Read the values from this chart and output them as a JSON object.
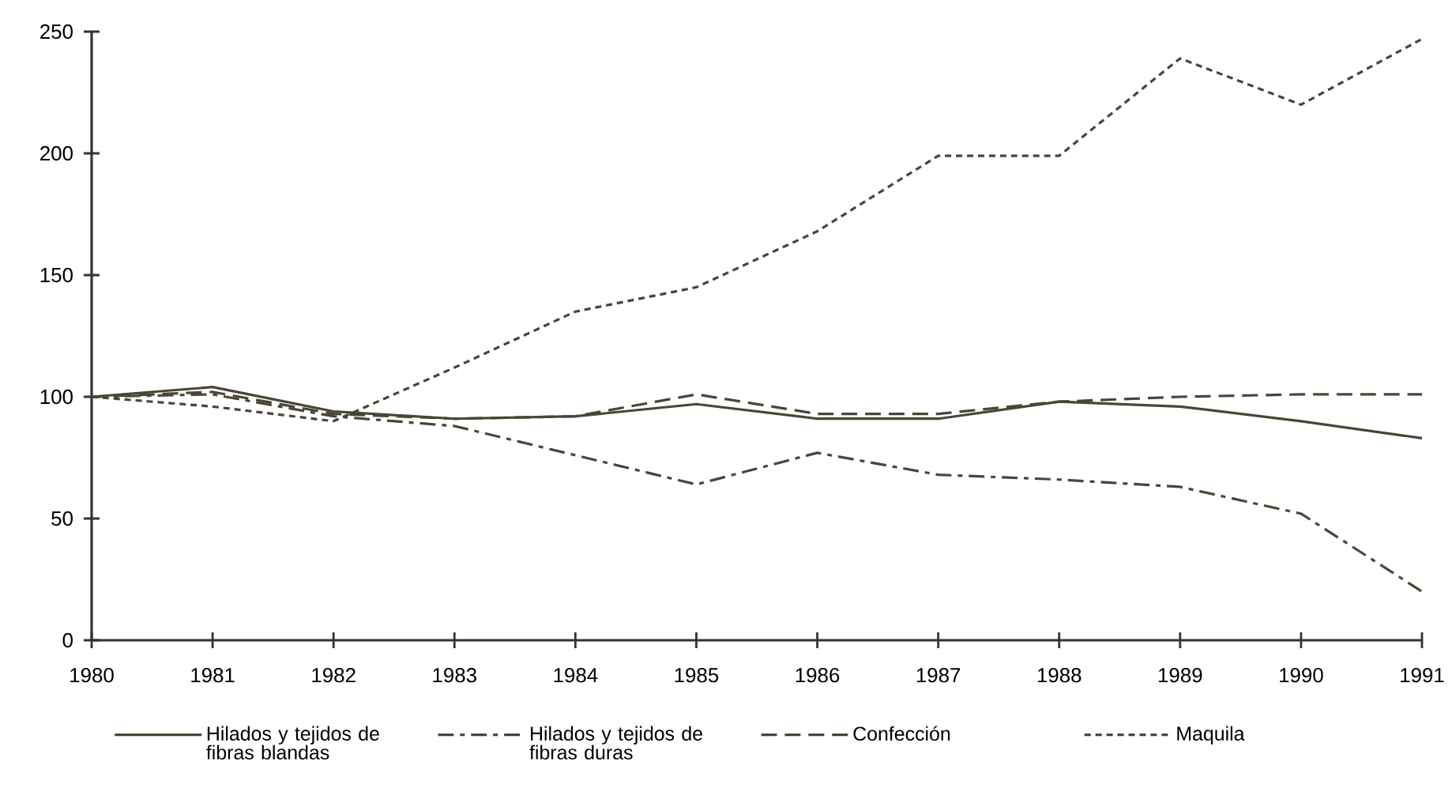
{
  "chart_data": {
    "type": "line",
    "x": [
      1980,
      1981,
      1982,
      1983,
      1984,
      1985,
      1986,
      1987,
      1988,
      1989,
      1990,
      1991
    ],
    "series": [
      {
        "name": "Hilados y tejidos de fibras blandas",
        "color": "#4a4536",
        "line_style": "solid",
        "values": [
          100,
          104,
          94,
          91,
          92,
          97,
          91,
          91,
          98,
          96,
          90,
          83
        ]
      },
      {
        "name": "Hilados y tejidos de fibras duras",
        "color": "#4a4536",
        "line_style": "dashdot",
        "values": [
          100,
          101,
          92,
          88,
          76,
          64,
          77,
          68,
          66,
          63,
          52,
          20
        ]
      },
      {
        "name": "Confección",
        "color": "#4a4536",
        "line_style": "dashed",
        "values": [
          100,
          102,
          93,
          91,
          92,
          101,
          93,
          93,
          98,
          100,
          101,
          101
        ]
      },
      {
        "name": "Maquila",
        "color": "#4a4536",
        "line_style": "dotted",
        "values": [
          100,
          96,
          90,
          112,
          135,
          145,
          168,
          199,
          199,
          239,
          220,
          247
        ]
      }
    ],
    "xlim": [
      1980,
      1991
    ],
    "xticks": [
      1980,
      1981,
      1982,
      1983,
      1984,
      1985,
      1986,
      1987,
      1988,
      1989,
      1990,
      1991
    ],
    "ylim": [
      0,
      250
    ],
    "yticks": [
      0,
      50,
      100,
      150,
      200,
      250
    ],
    "grid": false,
    "legend": "bottom",
    "marker": "none"
  }
}
